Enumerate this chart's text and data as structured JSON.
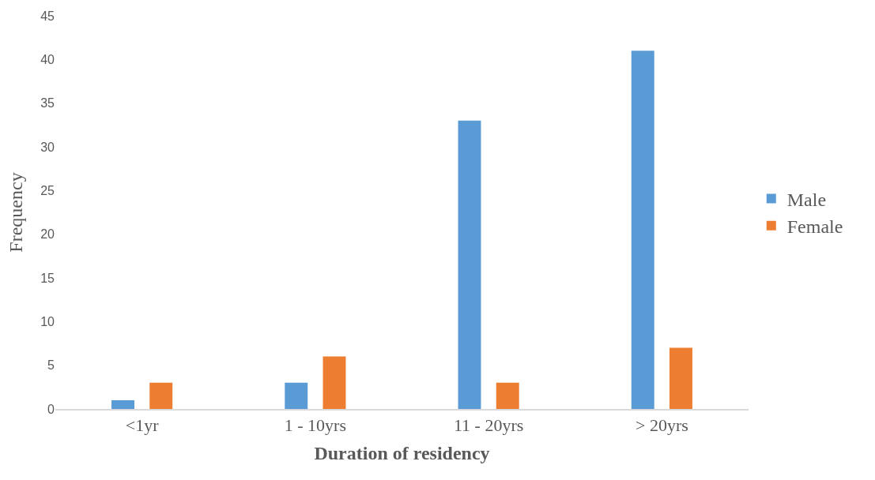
{
  "chart_data": {
    "type": "bar",
    "xlabel": "Duration of residency",
    "ylabel": "Frequency",
    "categories": [
      "<1yr",
      "1 - 10yrs",
      "11 - 20yrs",
      "> 20yrs"
    ],
    "series": [
      {
        "name": "Male",
        "color": "#5b9bd5",
        "values": [
          1,
          3,
          33,
          41
        ]
      },
      {
        "name": "Female",
        "color": "#ed7d31",
        "values": [
          3,
          6,
          3,
          7
        ]
      }
    ],
    "ylim": [
      0,
      45
    ],
    "yticks": [
      0,
      5,
      10,
      15,
      20,
      25,
      30,
      35,
      40,
      45
    ],
    "grid": false,
    "legend": "right"
  }
}
